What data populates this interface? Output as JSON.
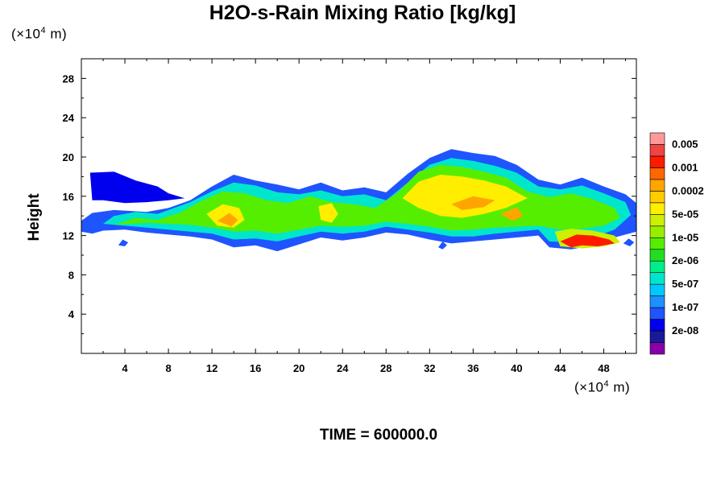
{
  "title": "H2O-s-Rain Mixing Ratio [kg/kg]",
  "time_label": "TIME = 600000.0",
  "chart_data": {
    "type": "heatmap",
    "title": "H2O-s-Rain Mixing Ratio [kg/kg]",
    "xlabel": "",
    "ylabel": "Height",
    "x_unit": {
      "prefix": "(×10",
      "exp": "4",
      "suffix": " m)"
    },
    "y_unit": {
      "prefix": "(×10",
      "exp": "4",
      "suffix": " m)"
    },
    "xlim": [
      0,
      51
    ],
    "ylim": [
      0,
      30
    ],
    "x_ticks": [
      4,
      8,
      12,
      16,
      20,
      24,
      28,
      32,
      36,
      40,
      44,
      48
    ],
    "y_ticks": [
      4,
      8,
      12,
      16,
      20,
      24,
      28
    ],
    "x_minor_step": 2,
    "y_minor_step": 2,
    "colorbar": {
      "levels": [
        {
          "label": "",
          "color": "#8800aa"
        },
        {
          "label": "2e-08",
          "color": "#1a1a99"
        },
        {
          "label": "",
          "color": "#0000ee"
        },
        {
          "label": "1e-07",
          "color": "#1f55ff"
        },
        {
          "label": "",
          "color": "#1f90ff"
        },
        {
          "label": "5e-07",
          "color": "#00c8ff"
        },
        {
          "label": "",
          "color": "#00e6cc"
        },
        {
          "label": "2e-06",
          "color": "#00ee88"
        },
        {
          "label": "",
          "color": "#22dd22"
        },
        {
          "label": "1e-05",
          "color": "#55ee00"
        },
        {
          "label": "",
          "color": "#99ee00"
        },
        {
          "label": "5e-05",
          "color": "#ccf000"
        },
        {
          "label": "",
          "color": "#ffee00"
        },
        {
          "label": "0.0002",
          "color": "#ffcc00"
        },
        {
          "label": "",
          "color": "#ffa500"
        },
        {
          "label": "0.001",
          "color": "#ff6600"
        },
        {
          "label": "",
          "color": "#ff1a00"
        },
        {
          "label": "0.005",
          "color": "#ee4444"
        },
        {
          "label": "",
          "color": "#ff9999"
        }
      ]
    },
    "regions": [
      {
        "level": 3,
        "points": [
          [
            0,
            13.5
          ],
          [
            1,
            14.3
          ],
          [
            3,
            14.6
          ],
          [
            6,
            14.4
          ],
          [
            8,
            14.8
          ],
          [
            10,
            15.6
          ],
          [
            12,
            17.0
          ],
          [
            14,
            18.2
          ],
          [
            16,
            17.6
          ],
          [
            18,
            17.2
          ],
          [
            20,
            16.7
          ],
          [
            22,
            17.4
          ],
          [
            24,
            16.6
          ],
          [
            26,
            16.9
          ],
          [
            28,
            16.4
          ],
          [
            30,
            18.3
          ],
          [
            32,
            19.9
          ],
          [
            34,
            20.8
          ],
          [
            36,
            20.4
          ],
          [
            38,
            20.1
          ],
          [
            40,
            19.2
          ],
          [
            42,
            17.7
          ],
          [
            44,
            17.2
          ],
          [
            46,
            17.9
          ],
          [
            48,
            17.0
          ],
          [
            50,
            16.2
          ],
          [
            51,
            15.3
          ],
          [
            51,
            12.4
          ],
          [
            49,
            11.8
          ],
          [
            47,
            11.0
          ],
          [
            45,
            10.6
          ],
          [
            43,
            10.8
          ],
          [
            42,
            12.0
          ],
          [
            40,
            11.8
          ],
          [
            38,
            11.6
          ],
          [
            36,
            11.4
          ],
          [
            34,
            11.2
          ],
          [
            32,
            11.6
          ],
          [
            30,
            12.1
          ],
          [
            28,
            12.3
          ],
          [
            26,
            11.8
          ],
          [
            24,
            11.5
          ],
          [
            22,
            11.8
          ],
          [
            20,
            11.1
          ],
          [
            18,
            10.4
          ],
          [
            16,
            11.0
          ],
          [
            14,
            10.8
          ],
          [
            12,
            11.6
          ],
          [
            10,
            11.9
          ],
          [
            8,
            12.1
          ],
          [
            6,
            12.3
          ],
          [
            4,
            12.6
          ],
          [
            2,
            12.5
          ],
          [
            1,
            12.2
          ],
          [
            0,
            12.4
          ]
        ]
      },
      {
        "level": 2,
        "points": [
          [
            0.8,
            18.4
          ],
          [
            3,
            18.5
          ],
          [
            5,
            17.6
          ],
          [
            7,
            17.0
          ],
          [
            8,
            16.3
          ],
          [
            9.5,
            15.8
          ],
          [
            8,
            15.6
          ],
          [
            6,
            15.4
          ],
          [
            4,
            15.3
          ],
          [
            2,
            15.6
          ],
          [
            1,
            15.6
          ]
        ]
      },
      {
        "level": 6,
        "points": [
          [
            2,
            13.2
          ],
          [
            3,
            14.0
          ],
          [
            5,
            14.4
          ],
          [
            7,
            14.2
          ],
          [
            8,
            14.6
          ],
          [
            10,
            15.4
          ],
          [
            12,
            16.5
          ],
          [
            14,
            17.4
          ],
          [
            16,
            17.1
          ],
          [
            18,
            16.4
          ],
          [
            20,
            16.2
          ],
          [
            22,
            16.6
          ],
          [
            24,
            16.0
          ],
          [
            26,
            16.2
          ],
          [
            28,
            15.6
          ],
          [
            30,
            17.4
          ],
          [
            32,
            19.2
          ],
          [
            34,
            19.9
          ],
          [
            36,
            19.6
          ],
          [
            38,
            19.1
          ],
          [
            40,
            18.4
          ],
          [
            42,
            17.0
          ],
          [
            44,
            16.7
          ],
          [
            46,
            17.1
          ],
          [
            48,
            16.3
          ],
          [
            50,
            15.4
          ],
          [
            50.5,
            14.1
          ],
          [
            49,
            12.6
          ],
          [
            47,
            11.8
          ],
          [
            45,
            11.3
          ],
          [
            43,
            11.4
          ],
          [
            42,
            12.6
          ],
          [
            40,
            12.4
          ],
          [
            38,
            12.2
          ],
          [
            36,
            11.9
          ],
          [
            34,
            11.9
          ],
          [
            32,
            12.3
          ],
          [
            30,
            12.6
          ],
          [
            28,
            12.9
          ],
          [
            26,
            12.4
          ],
          [
            24,
            12.2
          ],
          [
            22,
            12.4
          ],
          [
            20,
            11.9
          ],
          [
            18,
            11.4
          ],
          [
            16,
            11.7
          ],
          [
            14,
            11.6
          ],
          [
            12,
            12.2
          ],
          [
            10,
            12.4
          ],
          [
            8,
            12.6
          ],
          [
            6,
            12.8
          ],
          [
            4,
            13.0
          ]
        ]
      },
      {
        "level": 9,
        "points": [
          [
            3,
            13.1
          ],
          [
            5,
            13.8
          ],
          [
            7,
            13.6
          ],
          [
            9,
            14.3
          ],
          [
            11,
            15.5
          ],
          [
            13,
            16.5
          ],
          [
            15,
            16.3
          ],
          [
            17,
            15.6
          ],
          [
            19,
            15.3
          ],
          [
            21,
            16.0
          ],
          [
            23,
            15.4
          ],
          [
            25,
            15.2
          ],
          [
            27,
            14.8
          ],
          [
            29,
            16.3
          ],
          [
            31,
            18.5
          ],
          [
            33,
            19.2
          ],
          [
            35,
            19.0
          ],
          [
            37,
            18.5
          ],
          [
            39,
            17.9
          ],
          [
            41,
            16.5
          ],
          [
            43,
            15.9
          ],
          [
            45,
            16.3
          ],
          [
            47,
            15.7
          ],
          [
            49,
            14.8
          ],
          [
            49.5,
            13.8
          ],
          [
            48,
            13.0
          ],
          [
            46,
            12.7
          ],
          [
            44,
            12.6
          ],
          [
            42,
            13.0
          ],
          [
            40,
            12.9
          ],
          [
            38,
            12.8
          ],
          [
            36,
            12.6
          ],
          [
            34,
            12.5
          ],
          [
            32,
            12.9
          ],
          [
            30,
            13.2
          ],
          [
            28,
            13.4
          ],
          [
            26,
            13.0
          ],
          [
            24,
            12.9
          ],
          [
            22,
            13.0
          ],
          [
            20,
            12.6
          ],
          [
            18,
            12.2
          ],
          [
            16,
            12.5
          ],
          [
            14,
            12.4
          ],
          [
            12,
            12.8
          ],
          [
            10,
            13.1
          ],
          [
            8,
            13.2
          ],
          [
            6,
            13.3
          ]
        ]
      },
      {
        "level": 12,
        "points": [
          [
            29.5,
            15.8
          ],
          [
            31,
            17.5
          ],
          [
            33,
            18.2
          ],
          [
            35,
            18.0
          ],
          [
            37,
            17.6
          ],
          [
            39,
            17.0
          ],
          [
            41,
            15.8
          ],
          [
            39,
            14.8
          ],
          [
            37,
            14.2
          ],
          [
            35,
            13.8
          ],
          [
            33,
            14.0
          ],
          [
            31,
            14.8
          ]
        ]
      },
      {
        "level": 12,
        "points": [
          [
            11.5,
            14.2
          ],
          [
            13,
            15.2
          ],
          [
            14.5,
            14.8
          ],
          [
            15,
            13.6
          ],
          [
            14,
            12.8
          ],
          [
            12.5,
            13.0
          ]
        ]
      },
      {
        "level": 12,
        "points": [
          [
            21.8,
            15.0
          ],
          [
            23,
            15.3
          ],
          [
            23.6,
            14.2
          ],
          [
            23,
            13.3
          ],
          [
            22,
            13.6
          ]
        ]
      },
      {
        "level": 14,
        "points": [
          [
            12.5,
            13.5
          ],
          [
            13.6,
            14.3
          ],
          [
            14.4,
            13.6
          ],
          [
            13.8,
            12.9
          ]
        ]
      },
      {
        "level": 14,
        "points": [
          [
            34,
            15.2
          ],
          [
            36,
            16.0
          ],
          [
            38,
            15.6
          ],
          [
            37,
            14.9
          ],
          [
            35,
            14.6
          ]
        ]
      },
      {
        "level": 14,
        "points": [
          [
            38.5,
            14.2
          ],
          [
            40,
            14.9
          ],
          [
            40.6,
            14.0
          ],
          [
            39.6,
            13.5
          ]
        ]
      },
      {
        "level": 11,
        "points": [
          [
            43.5,
            12.4
          ],
          [
            45,
            12.7
          ],
          [
            47,
            12.5
          ],
          [
            49,
            12.0
          ],
          [
            49.5,
            11.3
          ],
          [
            48,
            10.9
          ],
          [
            46,
            10.7
          ],
          [
            44,
            10.9
          ]
        ]
      },
      {
        "level": 16,
        "points": [
          [
            44,
            11.4
          ],
          [
            45.5,
            12.1
          ],
          [
            47,
            12.0
          ],
          [
            48.5,
            11.6
          ],
          [
            49,
            11.2
          ],
          [
            47.5,
            10.9
          ],
          [
            46,
            11.0
          ],
          [
            45,
            10.8
          ]
        ]
      },
      {
        "level": 3,
        "points": [
          [
            3.4,
            11.0
          ],
          [
            3.8,
            11.6
          ],
          [
            4.3,
            11.3
          ],
          [
            4.0,
            10.9
          ]
        ]
      },
      {
        "level": 3,
        "points": [
          [
            32.8,
            10.8
          ],
          [
            33.2,
            11.4
          ],
          [
            33.6,
            11.0
          ],
          [
            33.2,
            10.6
          ]
        ]
      },
      {
        "level": 3,
        "points": [
          [
            49.8,
            11.2
          ],
          [
            50.3,
            11.7
          ],
          [
            50.8,
            11.3
          ],
          [
            50.4,
            10.9
          ]
        ]
      }
    ]
  }
}
